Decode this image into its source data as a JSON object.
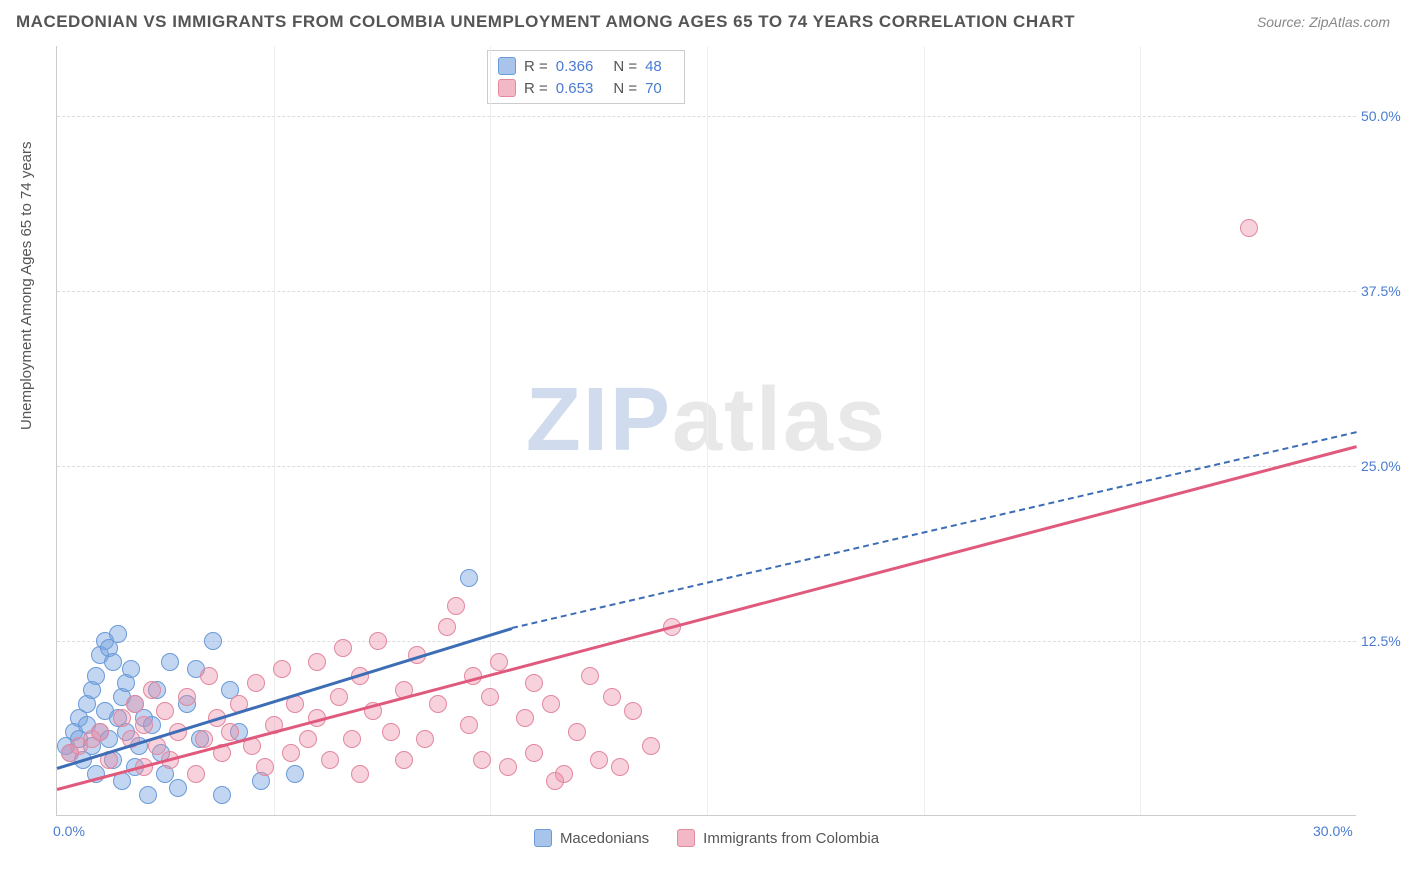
{
  "title": "MACEDONIAN VS IMMIGRANTS FROM COLOMBIA UNEMPLOYMENT AMONG AGES 65 TO 74 YEARS CORRELATION CHART",
  "source": "Source: ZipAtlas.com",
  "watermark_zip": "ZIP",
  "watermark_atlas": "atlas",
  "y_axis_label": "Unemployment Among Ages 65 to 74 years",
  "chart": {
    "type": "scatter-with-trendlines",
    "background_color": "#ffffff",
    "grid_color": "#dddddd",
    "axis_text_color": "#4a7bd0",
    "xlim": [
      0,
      30
    ],
    "ylim": [
      0,
      55
    ],
    "x_ticks": [
      0,
      30
    ],
    "x_tick_labels": [
      "0.0%",
      "30.0%"
    ],
    "y_ticks": [
      12.5,
      25.0,
      37.5,
      50.0
    ],
    "y_tick_labels": [
      "12.5%",
      "25.0%",
      "37.5%",
      "50.0%"
    ],
    "x_minor_grid": [
      5,
      10,
      15,
      20,
      25
    ],
    "marker_radius": 9,
    "marker_stroke_width": 1.5,
    "series": [
      {
        "name": "Macedonians",
        "color_fill": "rgba(120,164,224,0.45)",
        "color_stroke": "#6a9ad8",
        "swatch_fill": "#a8c4ea",
        "swatch_border": "#6a9ad8",
        "R": "0.366",
        "N": "48",
        "trend": {
          "x1": 0,
          "y1": 3.5,
          "x2": 10.5,
          "y2": 13.5,
          "color": "#3d6db5",
          "width": 2.5,
          "dash": "none",
          "ext_x2": 30,
          "ext_y2": 27.5,
          "ext_dash": "5,4"
        },
        "points": [
          [
            0.2,
            5.0
          ],
          [
            0.3,
            4.5
          ],
          [
            0.4,
            6.0
          ],
          [
            0.5,
            5.5
          ],
          [
            0.5,
            7.0
          ],
          [
            0.6,
            4.0
          ],
          [
            0.7,
            6.5
          ],
          [
            0.7,
            8.0
          ],
          [
            0.8,
            5.0
          ],
          [
            0.8,
            9.0
          ],
          [
            0.9,
            3.0
          ],
          [
            0.9,
            10.0
          ],
          [
            1.0,
            6.0
          ],
          [
            1.0,
            11.5
          ],
          [
            1.1,
            7.5
          ],
          [
            1.1,
            12.5
          ],
          [
            1.2,
            5.5
          ],
          [
            1.2,
            12.0
          ],
          [
            1.3,
            4.0
          ],
          [
            1.3,
            11.0
          ],
          [
            1.4,
            13.0
          ],
          [
            1.4,
            7.0
          ],
          [
            1.5,
            8.5
          ],
          [
            1.5,
            2.5
          ],
          [
            1.6,
            9.5
          ],
          [
            1.6,
            6.0
          ],
          [
            1.7,
            10.5
          ],
          [
            1.8,
            3.5
          ],
          [
            1.8,
            8.0
          ],
          [
            1.9,
            5.0
          ],
          [
            2.0,
            7.0
          ],
          [
            2.1,
            1.5
          ],
          [
            2.2,
            6.5
          ],
          [
            2.3,
            9.0
          ],
          [
            2.4,
            4.5
          ],
          [
            2.6,
            11.0
          ],
          [
            2.8,
            2.0
          ],
          [
            3.0,
            8.0
          ],
          [
            3.3,
            5.5
          ],
          [
            3.6,
            12.5
          ],
          [
            3.8,
            1.5
          ],
          [
            4.0,
            9.0
          ],
          [
            4.2,
            6.0
          ],
          [
            4.7,
            2.5
          ],
          [
            5.5,
            3.0
          ],
          [
            3.2,
            10.5
          ],
          [
            2.5,
            3.0
          ],
          [
            9.5,
            17.0
          ]
        ]
      },
      {
        "name": "Immigrants from Colombia",
        "color_fill": "rgba(235,140,165,0.4)",
        "color_stroke": "#e2889f",
        "swatch_fill": "#f3b8c6",
        "swatch_border": "#e2889f",
        "R": "0.653",
        "N": "70",
        "trend": {
          "x1": 0,
          "y1": 2.0,
          "x2": 30,
          "y2": 26.5,
          "color": "#e05a7d",
          "width": 2.5,
          "dash": "none"
        },
        "points": [
          [
            0.3,
            4.5
          ],
          [
            0.5,
            5.0
          ],
          [
            0.8,
            5.5
          ],
          [
            1.0,
            6.0
          ],
          [
            1.2,
            4.0
          ],
          [
            1.5,
            7.0
          ],
          [
            1.7,
            5.5
          ],
          [
            1.8,
            8.0
          ],
          [
            2.0,
            3.5
          ],
          [
            2.0,
            6.5
          ],
          [
            2.2,
            9.0
          ],
          [
            2.3,
            5.0
          ],
          [
            2.5,
            7.5
          ],
          [
            2.6,
            4.0
          ],
          [
            2.8,
            6.0
          ],
          [
            3.0,
            8.5
          ],
          [
            3.2,
            3.0
          ],
          [
            3.4,
            5.5
          ],
          [
            3.5,
            10.0
          ],
          [
            3.7,
            7.0
          ],
          [
            3.8,
            4.5
          ],
          [
            4.0,
            6.0
          ],
          [
            4.2,
            8.0
          ],
          [
            4.5,
            5.0
          ],
          [
            4.6,
            9.5
          ],
          [
            4.8,
            3.5
          ],
          [
            5.0,
            6.5
          ],
          [
            5.2,
            10.5
          ],
          [
            5.4,
            4.5
          ],
          [
            5.5,
            8.0
          ],
          [
            5.8,
            5.5
          ],
          [
            6.0,
            7.0
          ],
          [
            6.0,
            11.0
          ],
          [
            6.3,
            4.0
          ],
          [
            6.5,
            8.5
          ],
          [
            6.8,
            5.5
          ],
          [
            7.0,
            10.0
          ],
          [
            7.0,
            3.0
          ],
          [
            7.3,
            7.5
          ],
          [
            7.4,
            12.5
          ],
          [
            7.7,
            6.0
          ],
          [
            8.0,
            9.0
          ],
          [
            8.0,
            4.0
          ],
          [
            8.3,
            11.5
          ],
          [
            8.5,
            5.5
          ],
          [
            8.8,
            8.0
          ],
          [
            9.0,
            13.5
          ],
          [
            9.2,
            15.0
          ],
          [
            9.5,
            6.5
          ],
          [
            9.6,
            10.0
          ],
          [
            9.8,
            4.0
          ],
          [
            10.0,
            8.5
          ],
          [
            10.2,
            11.0
          ],
          [
            10.4,
            3.5
          ],
          [
            10.8,
            7.0
          ],
          [
            11.0,
            9.5
          ],
          [
            11.0,
            4.5
          ],
          [
            11.4,
            8.0
          ],
          [
            11.7,
            3.0
          ],
          [
            12.0,
            6.0
          ],
          [
            12.3,
            10.0
          ],
          [
            12.5,
            4.0
          ],
          [
            13.0,
            3.5
          ],
          [
            13.3,
            7.5
          ],
          [
            13.7,
            5.0
          ],
          [
            14.2,
            13.5
          ],
          [
            11.5,
            2.5
          ],
          [
            12.8,
            8.5
          ],
          [
            6.6,
            12.0
          ],
          [
            27.5,
            42.0
          ]
        ]
      }
    ]
  },
  "stats_legend_labels": {
    "R": "R =",
    "N": "N ="
  },
  "bottom_legend": [
    "Macedonians",
    "Immigrants from Colombia"
  ]
}
